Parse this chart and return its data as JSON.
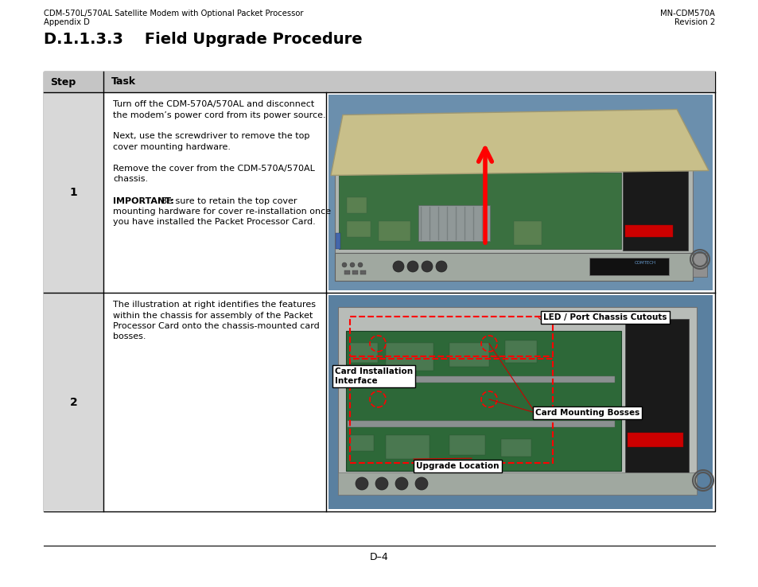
{
  "header_left_line1": "CDM-570L/570AL Satellite Modem with Optional Packet Processor",
  "header_left_line2": "Appendix D",
  "header_right_line1": "MN-CDM570A",
  "header_right_line2": "Revision 2",
  "page_title": "D.1.1.3.3    Field Upgrade Procedure",
  "footer_text": "D–4",
  "table_header_step": "Step",
  "table_header_task": "Task",
  "row1_step": "1",
  "row1_text": [
    "Turn off the CDM-570A/570AL and disconnect",
    "the modem’s power cord from its power source.",
    "",
    "Next, use the screwdriver to remove the top",
    "cover mounting hardware.",
    "",
    "Remove the cover from the CDM-570A/570AL",
    "chassis.",
    "",
    [
      "IMPORTANT:",
      " Be sure to retain the top cover"
    ],
    "mounting hardware for cover re-installation once",
    "you have installed the Packet Processor Card."
  ],
  "row2_step": "2",
  "row2_text": [
    "The illustration at right identifies the features",
    "within the chassis for assembly of the Packet",
    "Processor Card onto the chassis-mounted card",
    "bosses."
  ],
  "label_led": "LED / Port Chassis Cutouts",
  "label_card_install": "Card Installation\nInterface",
  "label_card_mount": "Card Mounting Bosses",
  "label_upgrade": "Upgrade Location",
  "sky_blue": "#6b8fad",
  "pcb_green": "#3a7040",
  "chassis_silver": "#b8bdb8",
  "cover_beige": "#c8bf8a",
  "dark_module": "#2a2a2a",
  "front_panel": "#888888"
}
